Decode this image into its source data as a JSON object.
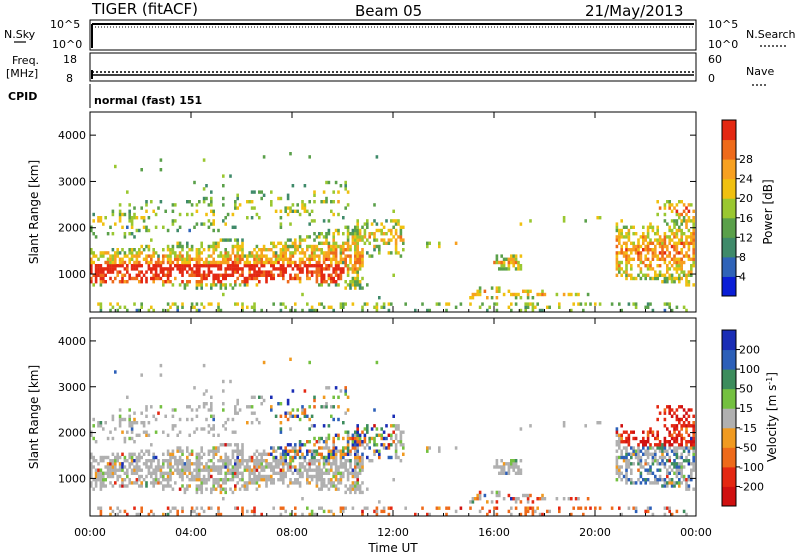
{
  "header": {
    "title": "TIGER (fitACF)",
    "beam": "Beam 05",
    "date": "21/May/2013"
  },
  "top_panels": {
    "nsky_label": "N.Sky",
    "nsearch_label": "N.Search",
    "noise_ticks_left": [
      "10^5",
      "10^0"
    ],
    "noise_ticks_right": [
      "10^5",
      "10^0"
    ],
    "freq_label_1": "Freq.",
    "freq_label_2": "[MHz]",
    "freq_ticks": [
      "18",
      "8"
    ],
    "nave_label": "Nave",
    "nave_ticks": [
      "60",
      "0"
    ],
    "cpid_label": "CPID",
    "cpid_text": "normal (fast) 151"
  },
  "chart_data": [
    {
      "type": "heatmap",
      "name": "power",
      "ylabel": "Slant Range [km]",
      "ylim": [
        180,
        4500
      ],
      "yticks": [
        "1000",
        "2000",
        "3000",
        "4000"
      ],
      "colorbar_label": "Power [dB]",
      "colorbar_ticks": [
        "4",
        "8",
        "12",
        "16",
        "20",
        "24",
        "28"
      ],
      "colors": [
        "#0a1ed6",
        "#2f63b8",
        "#3f8a6a",
        "#5aa04a",
        "#9ac730",
        "#f0c010",
        "#f7a020",
        "#ee6a1a",
        "#e42812"
      ],
      "range": [
        0,
        30
      ]
    },
    {
      "type": "heatmap",
      "name": "velocity",
      "ylabel": "Slant Range [km]",
      "ylim": [
        180,
        4500
      ],
      "yticks": [
        "1000",
        "2000",
        "3000",
        "4000"
      ],
      "colorbar_label": "Velocity [m s",
      "colorbar_label_sup": "-1",
      "colorbar_label_end": "]",
      "colorbar_ticks": [
        "200",
        "100",
        "50",
        "15",
        "-15",
        "-50",
        "-100",
        "-200"
      ],
      "colors": [
        "#1a2db5",
        "#2c5fb8",
        "#3c8c5c",
        "#74c040",
        "#b0b0b0",
        "#f09a20",
        "#ee6a1a",
        "#e42812",
        "#d01010"
      ]
    }
  ],
  "x_axis": {
    "xlabel": "Time UT",
    "xticks": [
      "00:00",
      "04:00",
      "08:00",
      "12:00",
      "16:00",
      "20:00",
      "00:00"
    ],
    "xlim_hours": [
      0,
      24
    ]
  }
}
